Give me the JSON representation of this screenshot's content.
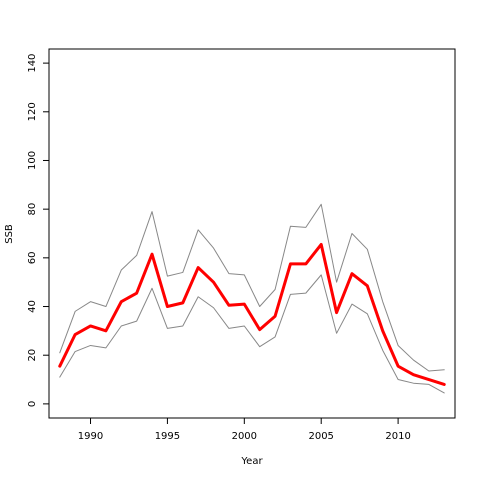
{
  "chart_data": {
    "type": "line",
    "title": "",
    "xlabel": "Year",
    "ylabel": "SSB",
    "xlim": [
      1987.3,
      2013.7
    ],
    "ylim": [
      -5.8,
      145.8
    ],
    "xticks": [
      1990,
      1995,
      2000,
      2005,
      2010
    ],
    "yticks": [
      0,
      20,
      40,
      60,
      80,
      100,
      120,
      140
    ],
    "grid": false,
    "legend": "none",
    "x": [
      1988,
      1989,
      1990,
      1991,
      1992,
      1993,
      1994,
      1995,
      1996,
      1997,
      1998,
      1999,
      2000,
      2001,
      2002,
      2003,
      2004,
      2005,
      2006,
      2007,
      2008,
      2009,
      2010,
      2011,
      2012,
      2013
    ],
    "series": [
      {
        "role": "upper",
        "color": "#888888",
        "width": 1,
        "values": [
          21,
          38,
          42,
          40,
          55,
          61,
          79,
          52.5,
          54,
          71.5,
          64,
          53.5,
          53,
          40,
          47,
          73,
          72.5,
          82,
          50,
          70,
          63.5,
          42,
          24,
          18,
          13.5,
          14
        ]
      },
      {
        "role": "estimate",
        "color": "#ff0000",
        "width": 3,
        "values": [
          15.5,
          28.5,
          32,
          30,
          42,
          45.5,
          61.5,
          40,
          41.5,
          56,
          50,
          40.5,
          41,
          30.5,
          36,
          57.5,
          57.5,
          65.5,
          37.5,
          53.5,
          48.5,
          30,
          15.5,
          12,
          10,
          8
        ]
      },
      {
        "role": "lower",
        "color": "#888888",
        "width": 1,
        "values": [
          11,
          21.5,
          24,
          23,
          32,
          34,
          47.5,
          31,
          32,
          44,
          39.5,
          31,
          32,
          23.5,
          27.5,
          45,
          45.5,
          53,
          29,
          41,
          37,
          22,
          10,
          8.5,
          8,
          4.5
        ]
      }
    ]
  }
}
